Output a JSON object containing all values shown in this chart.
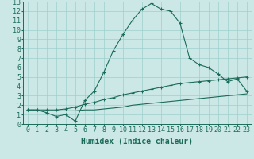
{
  "line1_x": [
    0,
    1,
    2,
    3,
    4,
    5,
    6,
    7,
    8,
    9,
    10,
    11,
    12,
    13,
    14,
    15,
    16,
    17,
    18,
    19,
    20,
    21,
    22,
    23
  ],
  "line1_y": [
    1.5,
    1.5,
    1.2,
    0.8,
    1.0,
    0.3,
    2.5,
    3.5,
    5.5,
    7.8,
    9.5,
    11.0,
    12.2,
    12.8,
    12.2,
    12.0,
    10.7,
    7.0,
    6.3,
    6.0,
    5.3,
    4.5,
    4.8,
    3.5
  ],
  "line2_x": [
    0,
    1,
    2,
    3,
    4,
    5,
    6,
    7,
    8,
    9,
    10,
    11,
    12,
    13,
    14,
    15,
    16,
    17,
    18,
    19,
    20,
    21,
    22,
    23
  ],
  "line2_y": [
    1.5,
    1.5,
    1.5,
    1.5,
    1.6,
    1.8,
    2.1,
    2.3,
    2.6,
    2.8,
    3.1,
    3.3,
    3.5,
    3.7,
    3.9,
    4.1,
    4.3,
    4.4,
    4.5,
    4.6,
    4.7,
    4.8,
    4.9,
    5.0
  ],
  "line3_x": [
    0,
    1,
    2,
    3,
    4,
    5,
    6,
    7,
    8,
    9,
    10,
    11,
    12,
    13,
    14,
    15,
    16,
    17,
    18,
    19,
    20,
    21,
    22,
    23
  ],
  "line3_y": [
    1.4,
    1.4,
    1.4,
    1.4,
    1.4,
    1.4,
    1.5,
    1.5,
    1.6,
    1.7,
    1.8,
    2.0,
    2.1,
    2.2,
    2.3,
    2.4,
    2.5,
    2.6,
    2.7,
    2.8,
    2.9,
    3.0,
    3.1,
    3.2
  ],
  "line_color": "#1a6b5a",
  "bg_color": "#cce8e6",
  "grid_color": "#9ecfcc",
  "xlabel": "Humidex (Indice chaleur)",
  "xlim": [
    -0.5,
    23.5
  ],
  "ylim": [
    0,
    13
  ],
  "xticks": [
    0,
    1,
    2,
    3,
    4,
    5,
    6,
    7,
    8,
    9,
    10,
    11,
    12,
    13,
    14,
    15,
    16,
    17,
    18,
    19,
    20,
    21,
    22,
    23
  ],
  "yticks": [
    0,
    1,
    2,
    3,
    4,
    5,
    6,
    7,
    8,
    9,
    10,
    11,
    12,
    13
  ],
  "xlabel_fontsize": 7,
  "tick_fontsize": 6
}
